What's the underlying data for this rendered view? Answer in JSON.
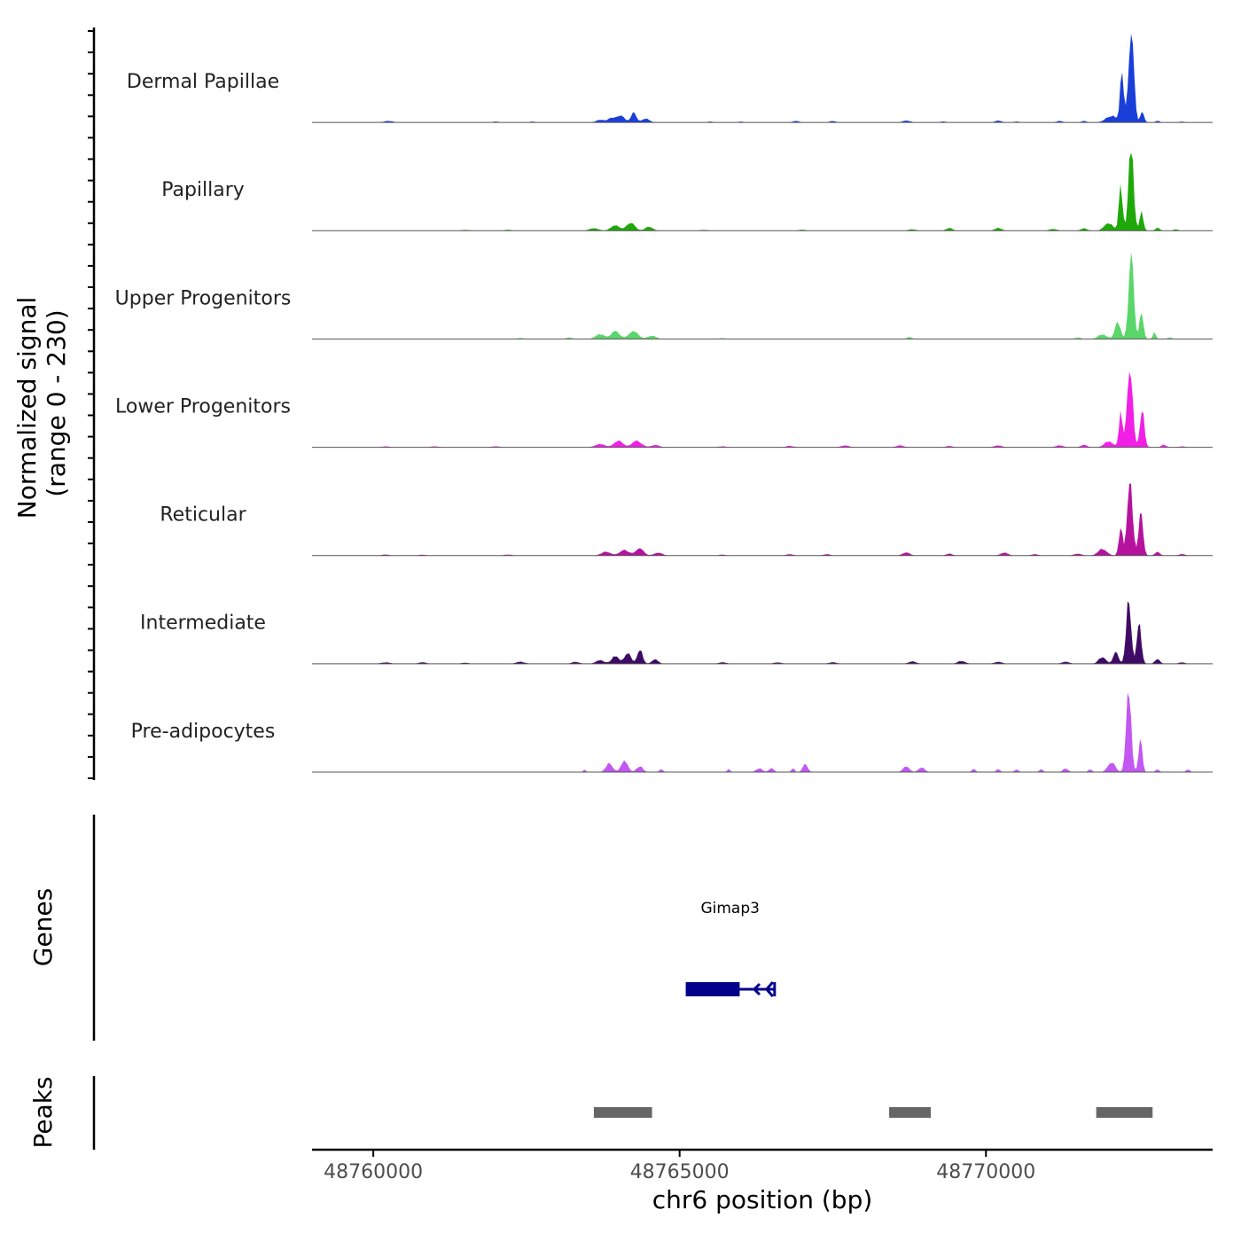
{
  "chart_data": {
    "type": "area",
    "genome_region": "chr6",
    "signal_axis_title_line1": "Normalized signal",
    "signal_axis_title_line2": "(range 0 - 230)",
    "signal_range": [
      0,
      230
    ],
    "xlabel": "chr6 position (bp)",
    "xlim": [
      48759000,
      48773700
    ],
    "x_ticks": [
      48760000,
      48765000,
      48770000
    ],
    "x_tick_labels": [
      "48760000",
      "48765000",
      "48770000"
    ],
    "tracks": [
      {
        "name": "Dermal Papillae",
        "color": "#1a3fd9",
        "peaks": [
          {
            "x": 48760250,
            "h": 3,
            "w": 150
          },
          {
            "x": 48762000,
            "h": 2,
            "w": 80
          },
          {
            "x": 48762600,
            "h": 2,
            "w": 80
          },
          {
            "x": 48763700,
            "h": 6,
            "w": 120
          },
          {
            "x": 48763900,
            "h": 10,
            "w": 130
          },
          {
            "x": 48764050,
            "h": 14,
            "w": 110
          },
          {
            "x": 48764250,
            "h": 20,
            "w": 90
          },
          {
            "x": 48764450,
            "h": 8,
            "w": 120
          },
          {
            "x": 48765500,
            "h": 2,
            "w": 80
          },
          {
            "x": 48766000,
            "h": 2,
            "w": 80
          },
          {
            "x": 48766900,
            "h": 3,
            "w": 100
          },
          {
            "x": 48767500,
            "h": 3,
            "w": 100
          },
          {
            "x": 48768700,
            "h": 4,
            "w": 120
          },
          {
            "x": 48769300,
            "h": 2,
            "w": 80
          },
          {
            "x": 48770200,
            "h": 4,
            "w": 100
          },
          {
            "x": 48770500,
            "h": 2,
            "w": 80
          },
          {
            "x": 48771200,
            "h": 3,
            "w": 100
          },
          {
            "x": 48771600,
            "h": 3,
            "w": 80
          },
          {
            "x": 48772050,
            "h": 14,
            "w": 180
          },
          {
            "x": 48772370,
            "h": 195,
            "w": 85
          },
          {
            "x": 48772220,
            "h": 110,
            "w": 60
          },
          {
            "x": 48772550,
            "h": 22,
            "w": 60
          },
          {
            "x": 48772800,
            "h": 4,
            "w": 60
          },
          {
            "x": 48773200,
            "h": 2,
            "w": 80
          }
        ]
      },
      {
        "name": "Papillary",
        "color": "#1fa80a",
        "peaks": [
          {
            "x": 48761500,
            "h": 2,
            "w": 120
          },
          {
            "x": 48762200,
            "h": 2,
            "w": 120
          },
          {
            "x": 48763600,
            "h": 5,
            "w": 150
          },
          {
            "x": 48763950,
            "h": 12,
            "w": 140
          },
          {
            "x": 48764200,
            "h": 16,
            "w": 140
          },
          {
            "x": 48764500,
            "h": 8,
            "w": 130
          },
          {
            "x": 48765400,
            "h": 2,
            "w": 120
          },
          {
            "x": 48767000,
            "h": 2,
            "w": 120
          },
          {
            "x": 48768800,
            "h": 3,
            "w": 120
          },
          {
            "x": 48769400,
            "h": 6,
            "w": 100
          },
          {
            "x": 48770200,
            "h": 6,
            "w": 110
          },
          {
            "x": 48771100,
            "h": 4,
            "w": 120
          },
          {
            "x": 48771600,
            "h": 5,
            "w": 100
          },
          {
            "x": 48772000,
            "h": 16,
            "w": 140
          },
          {
            "x": 48772370,
            "h": 180,
            "w": 80
          },
          {
            "x": 48772200,
            "h": 95,
            "w": 60
          },
          {
            "x": 48772540,
            "h": 40,
            "w": 60
          },
          {
            "x": 48772800,
            "h": 6,
            "w": 70
          },
          {
            "x": 48773100,
            "h": 3,
            "w": 80
          }
        ]
      },
      {
        "name": "Upper Progenitors",
        "color": "#5ad66a",
        "peaks": [
          {
            "x": 48762400,
            "h": 2,
            "w": 100
          },
          {
            "x": 48763200,
            "h": 3,
            "w": 100
          },
          {
            "x": 48763700,
            "h": 10,
            "w": 140
          },
          {
            "x": 48763950,
            "h": 16,
            "w": 140
          },
          {
            "x": 48764250,
            "h": 17,
            "w": 150
          },
          {
            "x": 48764550,
            "h": 7,
            "w": 130
          },
          {
            "x": 48765700,
            "h": 2,
            "w": 100
          },
          {
            "x": 48768750,
            "h": 4,
            "w": 80
          },
          {
            "x": 48771500,
            "h": 3,
            "w": 100
          },
          {
            "x": 48771900,
            "h": 10,
            "w": 140
          },
          {
            "x": 48772150,
            "h": 35,
            "w": 90
          },
          {
            "x": 48772370,
            "h": 185,
            "w": 80
          },
          {
            "x": 48772540,
            "h": 60,
            "w": 60
          },
          {
            "x": 48772750,
            "h": 14,
            "w": 50
          },
          {
            "x": 48773000,
            "h": 3,
            "w": 80
          }
        ]
      },
      {
        "name": "Lower Progenitors",
        "color": "#f21fe6",
        "peaks": [
          {
            "x": 48760200,
            "h": 2,
            "w": 120
          },
          {
            "x": 48761000,
            "h": 2,
            "w": 120
          },
          {
            "x": 48762000,
            "h": 2,
            "w": 120
          },
          {
            "x": 48763700,
            "h": 7,
            "w": 150
          },
          {
            "x": 48764000,
            "h": 13,
            "w": 150
          },
          {
            "x": 48764300,
            "h": 14,
            "w": 150
          },
          {
            "x": 48764600,
            "h": 5,
            "w": 130
          },
          {
            "x": 48765700,
            "h": 2,
            "w": 120
          },
          {
            "x": 48766800,
            "h": 3,
            "w": 120
          },
          {
            "x": 48767700,
            "h": 4,
            "w": 120
          },
          {
            "x": 48768600,
            "h": 4,
            "w": 120
          },
          {
            "x": 48769400,
            "h": 3,
            "w": 100
          },
          {
            "x": 48770200,
            "h": 4,
            "w": 120
          },
          {
            "x": 48771200,
            "h": 4,
            "w": 120
          },
          {
            "x": 48771600,
            "h": 5,
            "w": 100
          },
          {
            "x": 48772000,
            "h": 12,
            "w": 140
          },
          {
            "x": 48772350,
            "h": 180,
            "w": 85
          },
          {
            "x": 48772200,
            "h": 70,
            "w": 60
          },
          {
            "x": 48772550,
            "h": 80,
            "w": 70
          },
          {
            "x": 48772900,
            "h": 6,
            "w": 70
          },
          {
            "x": 48773200,
            "h": 2,
            "w": 100
          }
        ]
      },
      {
        "name": "Reticular",
        "color": "#b5139e",
        "peaks": [
          {
            "x": 48760200,
            "h": 2,
            "w": 120
          },
          {
            "x": 48760800,
            "h": 2,
            "w": 100
          },
          {
            "x": 48762200,
            "h": 2,
            "w": 120
          },
          {
            "x": 48763800,
            "h": 8,
            "w": 150
          },
          {
            "x": 48764100,
            "h": 11,
            "w": 150
          },
          {
            "x": 48764350,
            "h": 14,
            "w": 130
          },
          {
            "x": 48764650,
            "h": 6,
            "w": 130
          },
          {
            "x": 48765700,
            "h": 2,
            "w": 100
          },
          {
            "x": 48766800,
            "h": 3,
            "w": 100
          },
          {
            "x": 48767400,
            "h": 3,
            "w": 100
          },
          {
            "x": 48768700,
            "h": 6,
            "w": 120
          },
          {
            "x": 48769400,
            "h": 4,
            "w": 100
          },
          {
            "x": 48770300,
            "h": 6,
            "w": 120
          },
          {
            "x": 48770800,
            "h": 3,
            "w": 100
          },
          {
            "x": 48771500,
            "h": 4,
            "w": 120
          },
          {
            "x": 48771900,
            "h": 14,
            "w": 140
          },
          {
            "x": 48772350,
            "h": 160,
            "w": 85
          },
          {
            "x": 48772200,
            "h": 60,
            "w": 60
          },
          {
            "x": 48772530,
            "h": 90,
            "w": 70
          },
          {
            "x": 48772800,
            "h": 8,
            "w": 80
          },
          {
            "x": 48773200,
            "h": 3,
            "w": 100
          }
        ]
      },
      {
        "name": "Intermediate",
        "color": "#3f0a66",
        "peaks": [
          {
            "x": 48760200,
            "h": 3,
            "w": 140
          },
          {
            "x": 48760800,
            "h": 3,
            "w": 120
          },
          {
            "x": 48761500,
            "h": 2,
            "w": 120
          },
          {
            "x": 48762400,
            "h": 4,
            "w": 140
          },
          {
            "x": 48763300,
            "h": 4,
            "w": 120
          },
          {
            "x": 48763700,
            "h": 8,
            "w": 130
          },
          {
            "x": 48763950,
            "h": 16,
            "w": 120
          },
          {
            "x": 48764150,
            "h": 24,
            "w": 100
          },
          {
            "x": 48764350,
            "h": 30,
            "w": 90
          },
          {
            "x": 48764600,
            "h": 10,
            "w": 100
          },
          {
            "x": 48765700,
            "h": 3,
            "w": 120
          },
          {
            "x": 48766600,
            "h": 3,
            "w": 120
          },
          {
            "x": 48767500,
            "h": 3,
            "w": 120
          },
          {
            "x": 48768800,
            "h": 5,
            "w": 120
          },
          {
            "x": 48769600,
            "h": 6,
            "w": 120
          },
          {
            "x": 48770200,
            "h": 4,
            "w": 120
          },
          {
            "x": 48771300,
            "h": 4,
            "w": 120
          },
          {
            "x": 48771900,
            "h": 14,
            "w": 120
          },
          {
            "x": 48772120,
            "h": 28,
            "w": 80
          },
          {
            "x": 48772330,
            "h": 140,
            "w": 80
          },
          {
            "x": 48772500,
            "h": 90,
            "w": 70
          },
          {
            "x": 48772800,
            "h": 10,
            "w": 80
          },
          {
            "x": 48773200,
            "h": 3,
            "w": 100
          }
        ]
      },
      {
        "name": "Pre-adipocytes",
        "color": "#c257f2",
        "peaks": [
          {
            "x": 48763450,
            "h": 6,
            "w": 40
          },
          {
            "x": 48763850,
            "h": 18,
            "w": 110
          },
          {
            "x": 48764100,
            "h": 24,
            "w": 110
          },
          {
            "x": 48764350,
            "h": 12,
            "w": 100
          },
          {
            "x": 48764700,
            "h": 6,
            "w": 60
          },
          {
            "x": 48765800,
            "h": 6,
            "w": 50
          },
          {
            "x": 48766300,
            "h": 8,
            "w": 100
          },
          {
            "x": 48766500,
            "h": 8,
            "w": 80
          },
          {
            "x": 48766850,
            "h": 8,
            "w": 50
          },
          {
            "x": 48767050,
            "h": 18,
            "w": 80
          },
          {
            "x": 48768700,
            "h": 12,
            "w": 100
          },
          {
            "x": 48768950,
            "h": 10,
            "w": 100
          },
          {
            "x": 48769800,
            "h": 6,
            "w": 60
          },
          {
            "x": 48770200,
            "h": 6,
            "w": 60
          },
          {
            "x": 48770500,
            "h": 6,
            "w": 60
          },
          {
            "x": 48770900,
            "h": 6,
            "w": 60
          },
          {
            "x": 48771300,
            "h": 8,
            "w": 80
          },
          {
            "x": 48771700,
            "h": 6,
            "w": 60
          },
          {
            "x": 48772050,
            "h": 20,
            "w": 120
          },
          {
            "x": 48772330,
            "h": 170,
            "w": 80
          },
          {
            "x": 48772520,
            "h": 70,
            "w": 60
          },
          {
            "x": 48772800,
            "h": 6,
            "w": 60
          },
          {
            "x": 48773300,
            "h": 6,
            "w": 60
          }
        ]
      }
    ],
    "genes_track_title": "Genes",
    "genes": [
      {
        "name": "Gimap3",
        "strand": "-",
        "color": "#00008b",
        "start": 48765100,
        "end": 48766550,
        "thick_start": 48765100,
        "thick_end": 48765980
      }
    ],
    "peaks_track_title": "Peaks",
    "peak_regions": [
      {
        "start": 48763600,
        "end": 48764550,
        "color": "#666666"
      },
      {
        "start": 48768420,
        "end": 48769100,
        "color": "#666666"
      },
      {
        "start": 48771800,
        "end": 48772720,
        "color": "#666666"
      }
    ]
  }
}
